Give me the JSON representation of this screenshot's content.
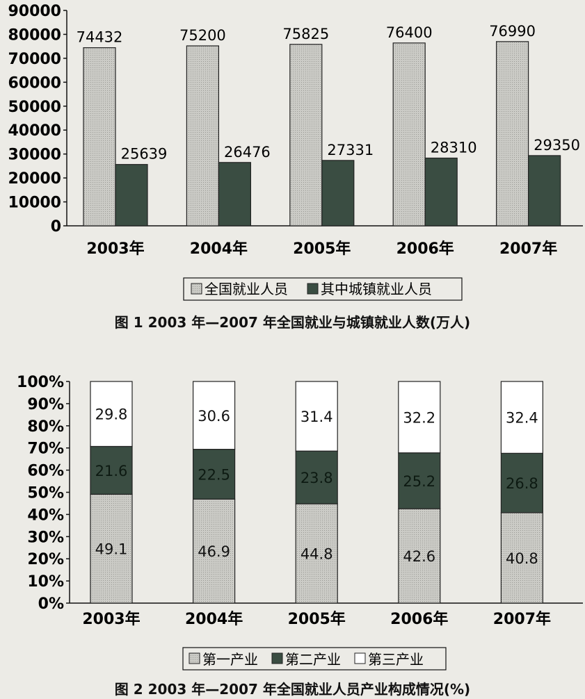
{
  "chart_data": [
    {
      "type": "bar",
      "categories": [
        "2003年",
        "2004年",
        "2005年",
        "2006年",
        "2007年"
      ],
      "series": [
        {
          "name": "全国就业人员",
          "values": [
            74432,
            75200,
            75825,
            76400,
            76990
          ]
        },
        {
          "name": "其中城镇就业人员",
          "values": [
            25639,
            26476,
            27331,
            28310,
            29350
          ]
        }
      ],
      "value_labels": [
        [
          "74432",
          "75200",
          "75825",
          "76400",
          "76990"
        ],
        [
          "25639",
          "26476",
          "27331",
          "28310",
          "29350"
        ]
      ],
      "ylim": [
        0,
        90000
      ],
      "yticks": [
        "0",
        "10000",
        "20000",
        "30000",
        "40000",
        "50000",
        "60000",
        "70000",
        "80000",
        "90000"
      ],
      "legend_position": "bottom",
      "grid": false,
      "colors": {
        "series1": "#c9c9c4",
        "series2": "#3a4d42"
      },
      "title": "图 1  2003 年—2007 年全国就业与城镇就业人数(万人)"
    },
    {
      "type": "bar",
      "stacked": true,
      "categories": [
        "2003年",
        "2004年",
        "2005年",
        "2006年",
        "2007年"
      ],
      "series": [
        {
          "name": "第一产业",
          "values": [
            49.1,
            46.9,
            44.8,
            42.6,
            40.8
          ]
        },
        {
          "name": "第二产业",
          "values": [
            21.6,
            22.5,
            23.8,
            25.2,
            26.8
          ]
        },
        {
          "name": "第三产业",
          "values": [
            29.8,
            30.6,
            31.4,
            32.2,
            32.4
          ]
        }
      ],
      "value_labels": [
        [
          "49.1",
          "46.9",
          "44.8",
          "42.6",
          "40.8"
        ],
        [
          "21.6",
          "22.5",
          "23.8",
          "25.2",
          "26.8"
        ],
        [
          "29.8",
          "30.6",
          "31.4",
          "32.2",
          "32.4"
        ]
      ],
      "ylim": [
        0,
        100
      ],
      "yticks": [
        "0%",
        "10%",
        "20%",
        "30%",
        "40%",
        "50%",
        "60%",
        "70%",
        "80%",
        "90%",
        "100%"
      ],
      "legend_position": "bottom",
      "grid": false,
      "colors": {
        "series1": "#c9c9c4",
        "series2": "#3a4d42",
        "series3": "#ffffff"
      },
      "title": "图 2  2003 年—2007 年全国就业人员产业构成情况(%)"
    }
  ]
}
